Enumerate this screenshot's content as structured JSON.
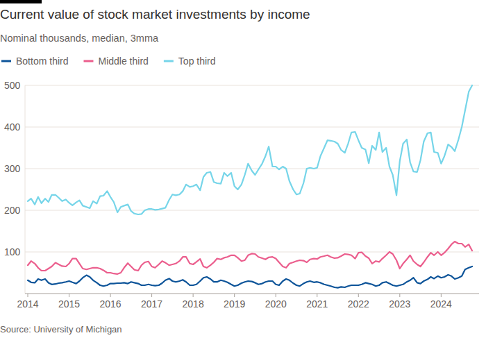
{
  "chart_data": {
    "type": "line",
    "title": "Current value of stock market investments by income",
    "subtitle": "Nominal thousands, median, 3mma",
    "source": "Source: University of Michigan",
    "grid": true,
    "legend": "top-left",
    "xlim": [
      2014,
      2024.75
    ],
    "xticks": [
      2014,
      2015,
      2016,
      2017,
      2018,
      2019,
      2020,
      2021,
      2022,
      2023,
      2024
    ],
    "ylim": [
      0,
      500
    ],
    "yticks": [
      100,
      200,
      300,
      400,
      500
    ],
    "x": [
      2014,
      2014.08,
      2014.17,
      2014.25,
      2014.33,
      2014.42,
      2014.5,
      2014.58,
      2014.67,
      2014.75,
      2014.83,
      2014.92,
      2015,
      2015.08,
      2015.17,
      2015.25,
      2015.33,
      2015.42,
      2015.5,
      2015.58,
      2015.67,
      2015.75,
      2015.83,
      2015.92,
      2016,
      2016.08,
      2016.17,
      2016.25,
      2016.33,
      2016.42,
      2016.5,
      2016.58,
      2016.67,
      2016.75,
      2016.83,
      2016.92,
      2017,
      2017.08,
      2017.17,
      2017.25,
      2017.33,
      2017.42,
      2017.5,
      2017.58,
      2017.67,
      2017.75,
      2017.83,
      2017.92,
      2018,
      2018.08,
      2018.17,
      2018.25,
      2018.33,
      2018.42,
      2018.5,
      2018.58,
      2018.67,
      2018.75,
      2018.83,
      2018.92,
      2019,
      2019.08,
      2019.17,
      2019.25,
      2019.33,
      2019.42,
      2019.5,
      2019.58,
      2019.67,
      2019.75,
      2019.83,
      2019.92,
      2020,
      2020.08,
      2020.17,
      2020.25,
      2020.33,
      2020.42,
      2020.5,
      2020.58,
      2020.67,
      2020.75,
      2020.83,
      2020.92,
      2021,
      2021.08,
      2021.17,
      2021.25,
      2021.33,
      2021.42,
      2021.5,
      2021.58,
      2021.67,
      2021.75,
      2021.83,
      2021.92,
      2022,
      2022.08,
      2022.17,
      2022.25,
      2022.33,
      2022.42,
      2022.5,
      2022.58,
      2022.67,
      2022.75,
      2022.83,
      2022.92,
      2023,
      2023.08,
      2023.17,
      2023.25,
      2023.33,
      2023.42,
      2023.5,
      2023.58,
      2023.67,
      2023.75,
      2023.83,
      2023.92,
      2024,
      2024.08,
      2024.17,
      2024.25,
      2024.33,
      2024.42,
      2024.5,
      2024.58,
      2024.67,
      2024.75
    ],
    "series": [
      {
        "name": "Bottom third",
        "color": "#0d5499",
        "values": [
          32,
          27,
          26,
          35,
          32,
          35,
          26,
          22,
          23,
          25,
          26,
          28,
          30,
          27,
          24,
          30,
          38,
          44,
          40,
          32,
          26,
          20,
          18,
          20,
          24,
          24,
          25,
          25,
          26,
          24,
          28,
          26,
          24,
          20,
          20,
          22,
          20,
          19,
          20,
          25,
          32,
          36,
          30,
          28,
          30,
          33,
          28,
          20,
          20,
          22,
          30,
          38,
          40,
          35,
          28,
          28,
          32,
          30,
          27,
          22,
          18,
          20,
          25,
          28,
          30,
          29,
          26,
          22,
          24,
          28,
          30,
          30,
          22,
          20,
          30,
          35,
          32,
          25,
          20,
          18,
          24,
          28,
          30,
          27,
          28,
          26,
          22,
          20,
          18,
          15,
          14,
          16,
          15,
          18,
          20,
          20,
          20,
          22,
          26,
          24,
          22,
          18,
          20,
          26,
          28,
          24,
          20,
          18,
          20,
          22,
          28,
          32,
          38,
          26,
          24,
          30,
          34,
          40,
          36,
          42,
          38,
          40,
          45,
          42,
          35,
          38,
          42,
          58,
          62,
          65
        ]
      },
      {
        "name": "Middle third",
        "color": "#eb5e8d",
        "values": [
          68,
          78,
          72,
          62,
          55,
          55,
          60,
          65,
          74,
          70,
          66,
          65,
          72,
          84,
          84,
          72,
          60,
          58,
          60,
          62,
          62,
          60,
          56,
          50,
          50,
          48,
          47,
          50,
          62,
          73,
          65,
          57,
          55,
          68,
          75,
          77,
          65,
          62,
          70,
          78,
          74,
          68,
          70,
          72,
          78,
          88,
          88,
          72,
          70,
          76,
          83,
          65,
          62,
          68,
          75,
          84,
          82,
          86,
          88,
          92,
          92,
          86,
          78,
          80,
          92,
          96,
          95,
          88,
          85,
          82,
          87,
          88,
          84,
          75,
          65,
          62,
          72,
          75,
          78,
          80,
          79,
          75,
          82,
          84,
          83,
          88,
          90,
          92,
          88,
          85,
          86,
          90,
          95,
          94,
          92,
          84,
          98,
          99,
          90,
          85,
          72,
          78,
          76,
          84,
          92,
          100,
          95,
          80,
          60,
          72,
          82,
          92,
          78,
          70,
          65,
          75,
          88,
          98,
          92,
          100,
          92,
          98,
          108,
          118,
          125,
          120,
          120,
          112,
          118,
          103
        ]
      },
      {
        "name": "Top third",
        "color": "#76d5e9",
        "values": [
          222,
          228,
          214,
          232,
          217,
          228,
          220,
          237,
          237,
          230,
          222,
          226,
          218,
          212,
          219,
          224,
          211,
          208,
          205,
          222,
          216,
          234,
          235,
          246,
          232,
          220,
          195,
          208,
          211,
          214,
          198,
          192,
          190,
          191,
          200,
          203,
          203,
          201,
          202,
          204,
          206,
          225,
          238,
          236,
          238,
          246,
          262,
          256,
          258,
          262,
          248,
          280,
          290,
          292,
          268,
          265,
          264,
          290,
          282,
          290,
          258,
          250,
          262,
          285,
          312,
          295,
          285,
          298,
          312,
          330,
          353,
          305,
          305,
          298,
          305,
          300,
          270,
          250,
          238,
          240,
          265,
          300,
          302,
          300,
          302,
          330,
          350,
          368,
          367,
          365,
          360,
          345,
          338,
          360,
          387,
          388,
          368,
          350,
          346,
          313,
          355,
          345,
          387,
          340,
          350,
          305,
          285,
          236,
          318,
          360,
          370,
          315,
          293,
          292,
          320,
          365,
          385,
          387,
          340,
          338,
          312,
          330,
          358,
          352,
          342,
          370,
          400,
          440,
          485,
          500
        ]
      }
    ]
  }
}
